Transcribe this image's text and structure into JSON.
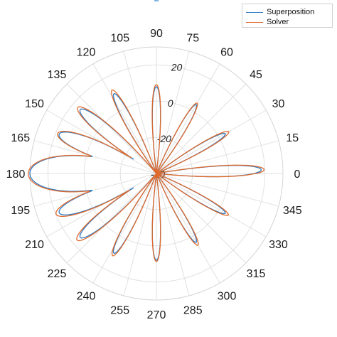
{
  "chart_data": {
    "type": "polar_line",
    "title": "",
    "r_range": [
      -40,
      30
    ],
    "r_ticks": [
      -40,
      -20,
      0,
      20
    ],
    "theta_ticks": [
      "0",
      "15",
      "30",
      "45",
      "60",
      "75",
      "90",
      "105",
      "120",
      "135",
      "150",
      "165",
      "180",
      "195",
      "210",
      "225",
      "240",
      "255",
      "270",
      "285",
      "300",
      "315",
      "330",
      "345"
    ],
    "grid": true,
    "legend_position": "top-right",
    "series": [
      {
        "name": "Superposition",
        "color": "#2E7BC4"
      },
      {
        "name": "Solver",
        "color": "#E06A2C"
      }
    ],
    "lobes": [
      {
        "angle": 180,
        "peak": 30.0,
        "half_width": 10
      },
      {
        "angle": 2,
        "peak": 18.0,
        "half_width": 4
      },
      {
        "angle": 158,
        "peak": 18.0,
        "half_width": 6
      },
      {
        "angle": 202,
        "peak": 18.0,
        "half_width": 6
      },
      {
        "angle": 140,
        "peak": 15.0,
        "half_width": 5
      },
      {
        "angle": 220,
        "peak": 15.0,
        "half_width": 5
      },
      {
        "angle": 118,
        "peak": 10.0,
        "half_width": 4
      },
      {
        "angle": 242,
        "peak": 10.0,
        "half_width": 4
      },
      {
        "angle": 90,
        "peak": 8.0,
        "half_width": 4
      },
      {
        "angle": 270,
        "peak": 8.0,
        "half_width": 4
      },
      {
        "angle": 60,
        "peak": 4.0,
        "half_width": 4
      },
      {
        "angle": 300,
        "peak": 4.0,
        "half_width": 4
      },
      {
        "angle": 30,
        "peak": 4.0,
        "half_width": 4
      },
      {
        "angle": 330,
        "peak": 4.0,
        "half_width": 4
      }
    ],
    "series_offsets_db": {
      "Superposition": 0,
      "Solver": 1.5
    }
  }
}
